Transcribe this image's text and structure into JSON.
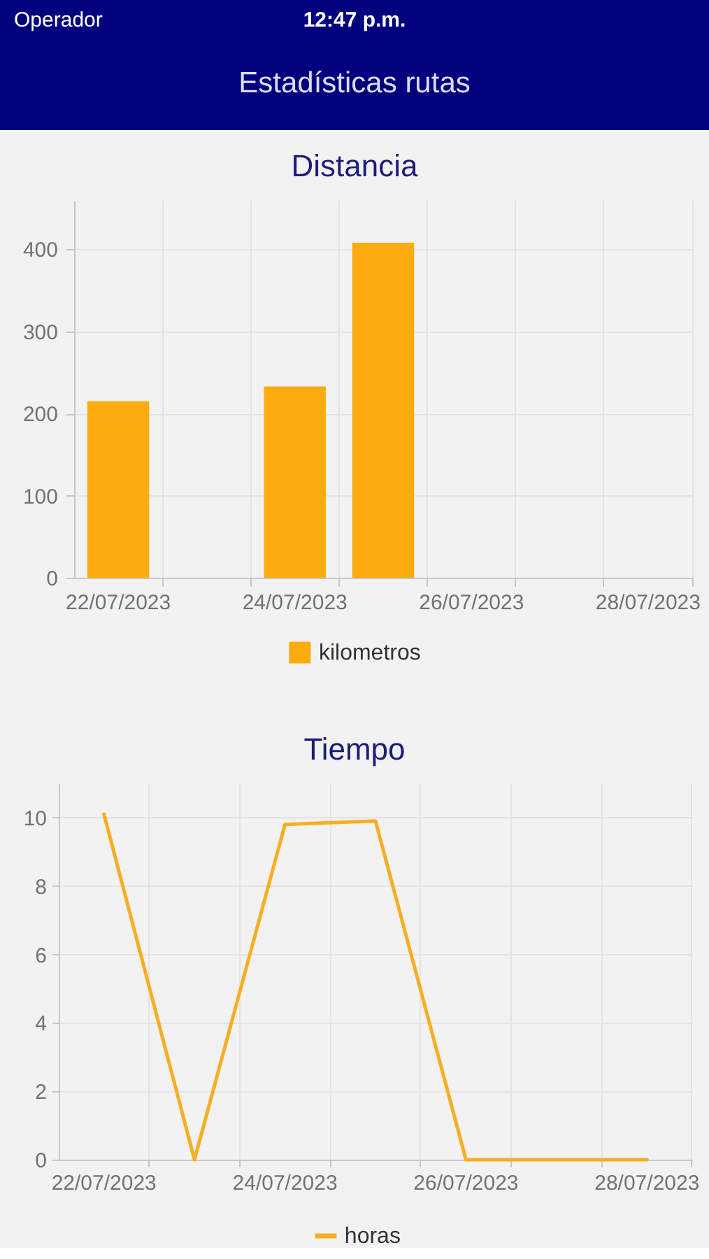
{
  "chart_data": [
    {
      "type": "bar",
      "title": "Distancia",
      "categories": [
        "22/07/2023",
        null,
        "24/07/2023",
        null,
        "26/07/2023",
        null,
        "28/07/2023"
      ],
      "series": [
        {
          "name": "kilometros",
          "color": "#fdab0f",
          "values": [
            215,
            null,
            233,
            408,
            null,
            null,
            null
          ]
        }
      ],
      "ylim": [
        0,
        460
      ],
      "yticks": [
        0,
        100,
        200,
        300,
        400
      ],
      "grid": true,
      "legend": "bottom",
      "annotations": [
        "Operador",
        "12:47 p.m.",
        "Estadísticas rutas"
      ]
    },
    {
      "type": "line",
      "title": "Tiempo",
      "categories": [
        "22/07/2023",
        null,
        "24/07/2023",
        null,
        "26/07/2023",
        null,
        "28/07/2023"
      ],
      "series": [
        {
          "name": "horas",
          "color": "#f6ae24",
          "values": [
            10.1,
            0,
            9.8,
            9.9,
            0,
            0,
            0
          ]
        }
      ],
      "ylim": [
        0,
        11
      ],
      "yticks": [
        0,
        2,
        4,
        6,
        8,
        10
      ],
      "grid": true,
      "legend": "bottom"
    }
  ]
}
